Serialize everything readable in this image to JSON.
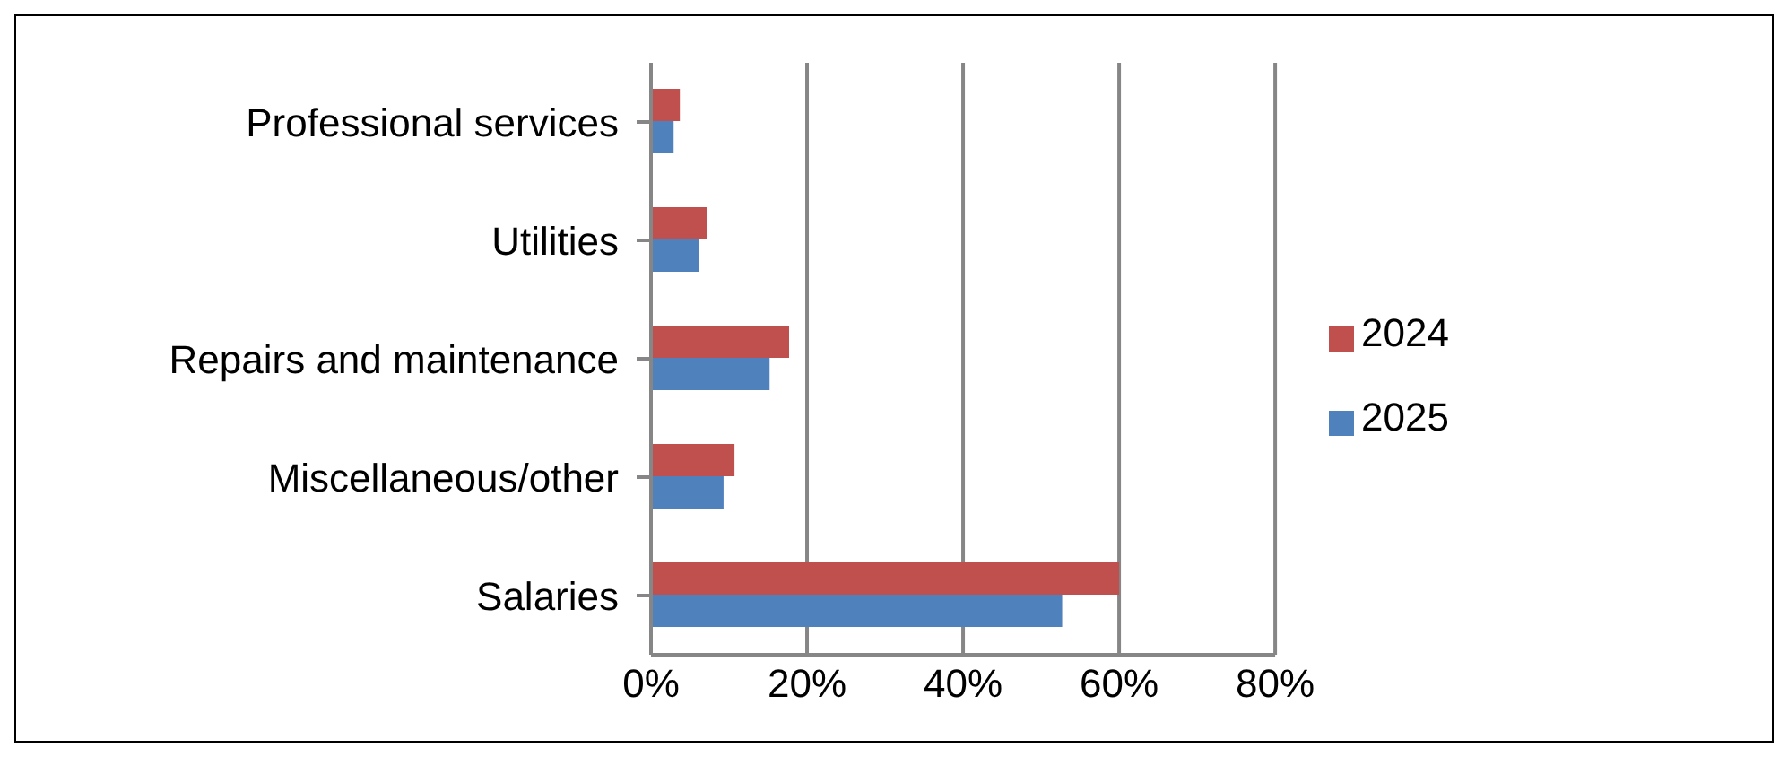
{
  "chart_data": {
    "type": "bar",
    "orientation": "horizontal",
    "categories": [
      "Professional services",
      "Utilities",
      "Repairs and maintenance",
      "Miscellaneous/other",
      "Salaries"
    ],
    "series": [
      {
        "name": "2024",
        "color": "#c0504d",
        "values": [
          3.7,
          7.2,
          17.7,
          10.7,
          60
        ]
      },
      {
        "name": "2025",
        "color": "#4f81bd",
        "values": [
          2.9,
          6.1,
          15.2,
          9.3,
          52.7
        ]
      }
    ],
    "xlim": [
      0,
      80
    ],
    "xticks": [
      {
        "value": 0,
        "label": "0%"
      },
      {
        "value": 20,
        "label": "20%"
      },
      {
        "value": 40,
        "label": "40%"
      },
      {
        "value": 60,
        "label": "60%"
      },
      {
        "value": 80,
        "label": "80%"
      }
    ],
    "grid": "x",
    "legend": "right"
  }
}
